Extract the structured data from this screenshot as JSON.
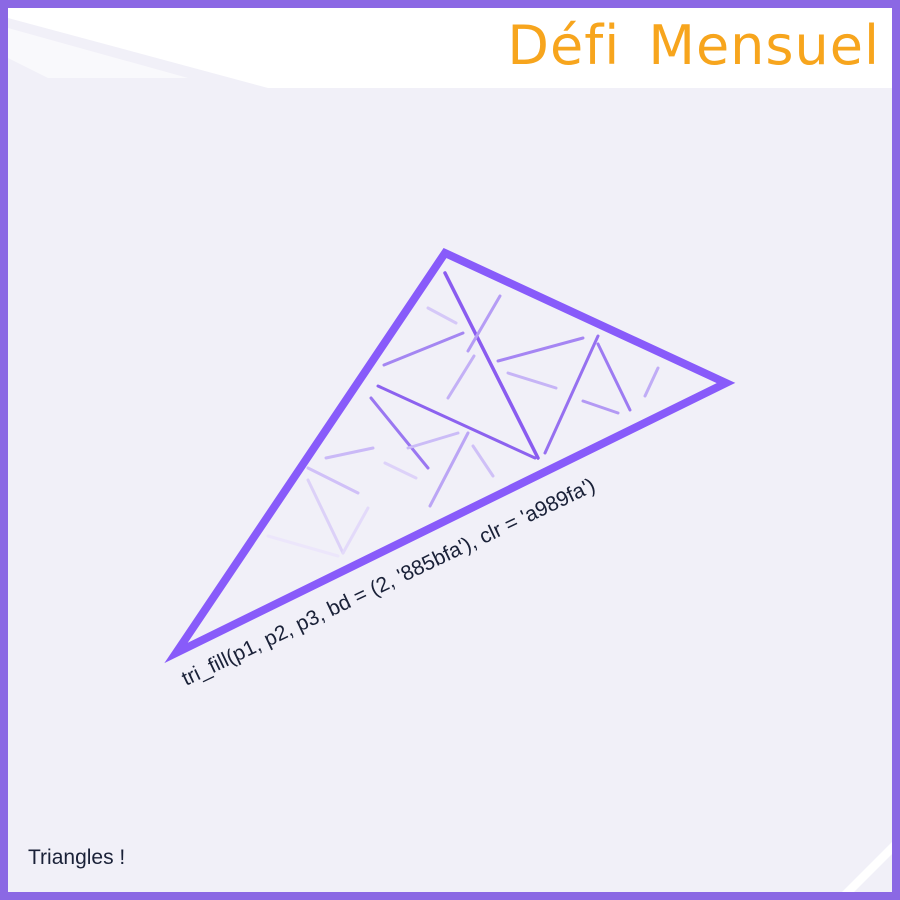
{
  "header": {
    "title": "Défi  Mensuel"
  },
  "artwork": {
    "code_label": "tri_fill(p1, p2, p3, bd = (2, '885bfa'), clr = 'a989fa')"
  },
  "footer": {
    "caption": "Triangles !"
  },
  "colors": {
    "border": "#8b68e4",
    "background": "#f1f0f8",
    "title": "#f7a51d",
    "triangle_stroke": "#885bfa",
    "triangle_fill": "#a989fa",
    "caption_text": "#1a2138"
  }
}
